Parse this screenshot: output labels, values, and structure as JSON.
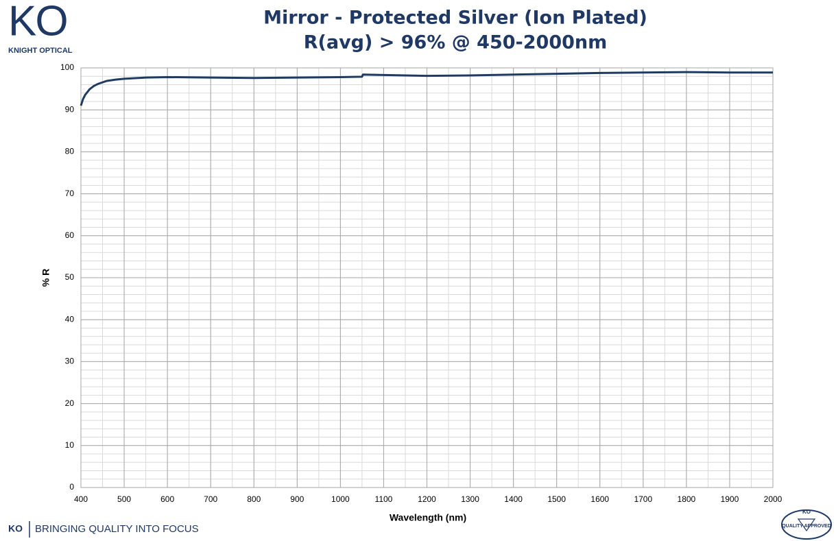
{
  "branding": {
    "logo": "KO",
    "company": "KNIGHT OPTICAL",
    "footer_logo": "KO",
    "slogan": "BRINGING QUALITY INTO FOCUS",
    "badge_logo": "KO",
    "badge_text": "QUALITY APPROVED"
  },
  "chart_data": {
    "type": "line",
    "title": "Mirror - Protected Silver (Ion Plated)",
    "subtitle": "R(avg) > 96% @ 450-2000nm",
    "x_label": "Wavelength (nm)",
    "y_label": "% R",
    "x": [
      400,
      405,
      410,
      420,
      430,
      440,
      460,
      480,
      500,
      550,
      600,
      700,
      800,
      900,
      1000,
      1050,
      1052,
      1100,
      1200,
      1300,
      1400,
      1500,
      1600,
      1700,
      1800,
      1900,
      2000
    ],
    "values": [
      91,
      92.6,
      93.6,
      94.9,
      95.7,
      96.2,
      96.9,
      97.2,
      97.4,
      97.7,
      97.8,
      97.7,
      97.6,
      97.7,
      97.8,
      97.9,
      98.4,
      98.3,
      98.1,
      98.2,
      98.4,
      98.6,
      98.8,
      98.9,
      99.0,
      98.9,
      98.9
    ],
    "color": "#1f3b60",
    "xlim": [
      400,
      2000
    ],
    "ylim": [
      0,
      100
    ],
    "xticks": [
      400,
      500,
      600,
      700,
      800,
      900,
      1000,
      1100,
      1200,
      1300,
      1400,
      1500,
      1600,
      1700,
      1800,
      1900,
      2000
    ],
    "yticks": [
      0,
      10,
      20,
      30,
      40,
      50,
      60,
      70,
      80,
      90,
      100
    ],
    "grid": true,
    "minor_grid_step": {
      "x": 50,
      "y": 2
    }
  }
}
